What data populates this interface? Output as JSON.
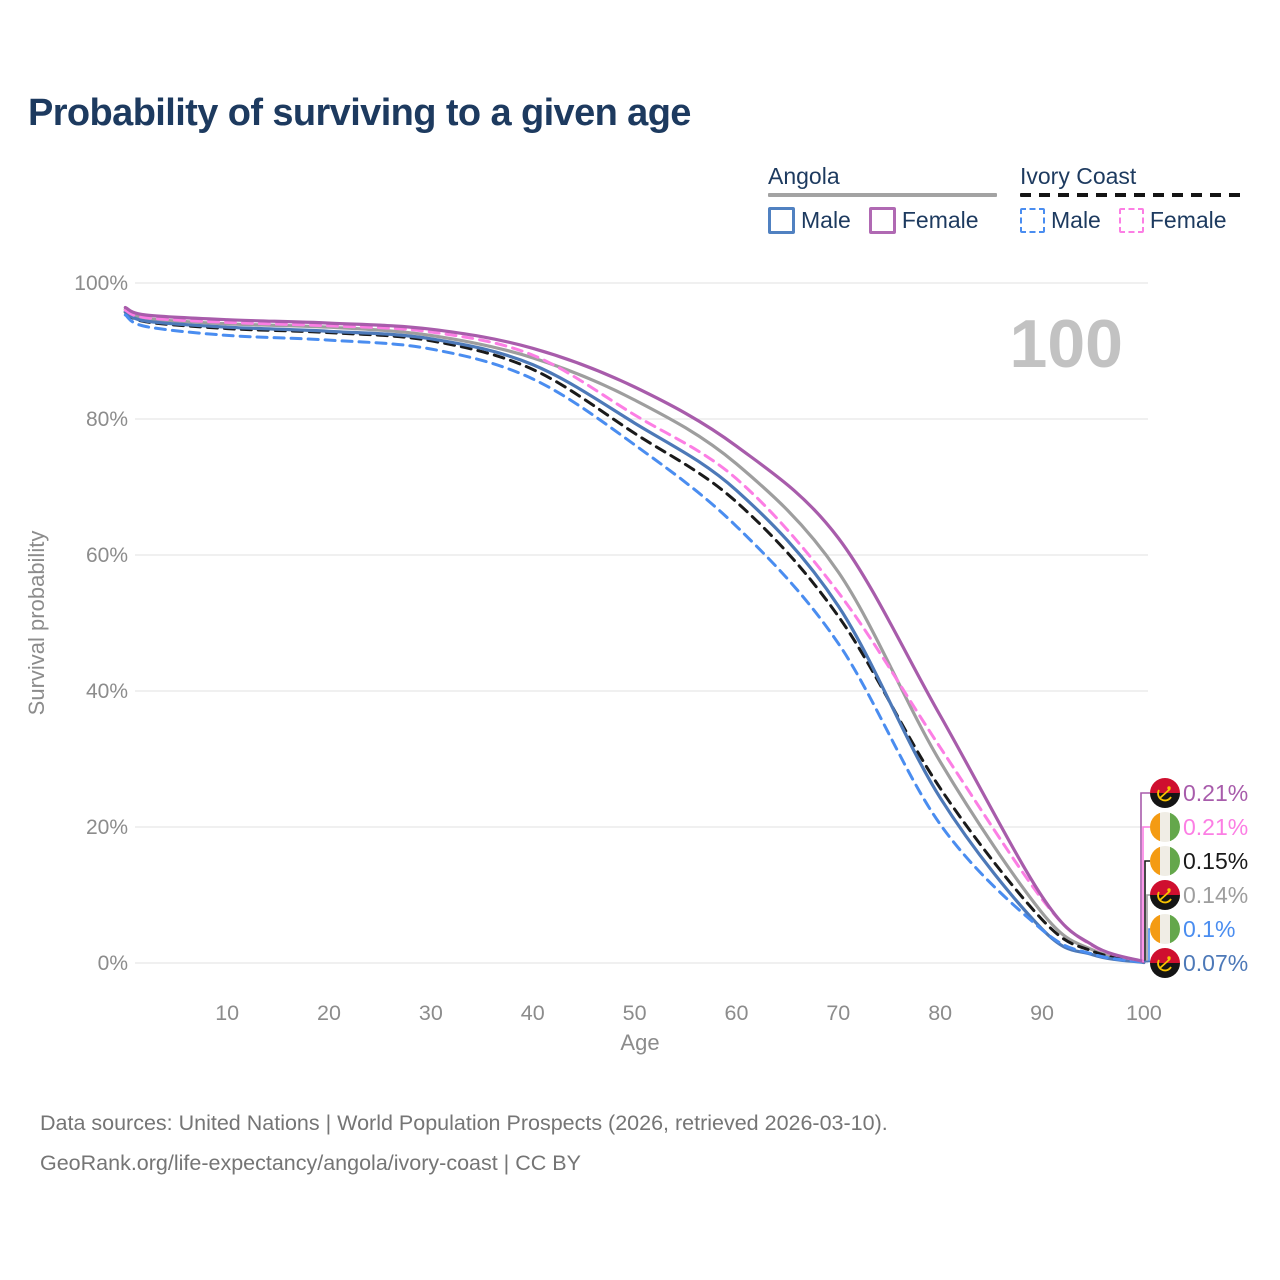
{
  "title": "Probability of surviving to a given age",
  "age_counter": "100",
  "legend": {
    "groups": [
      {
        "label": "Angola",
        "line_style": "solid",
        "underline_color": "#a3a3a3",
        "items": [
          {
            "label": "Male",
            "color": "#5081c1",
            "series_id": "angola-male"
          },
          {
            "label": "Female",
            "color": "#b069b3",
            "series_id": "angola-female"
          }
        ]
      },
      {
        "label": "Ivory Coast",
        "line_style": "dashed",
        "underline_color": "#141414",
        "items": [
          {
            "label": "Male",
            "color": "#4a8df0",
            "series_id": "ivory-coast-male"
          },
          {
            "label": "Female",
            "color": "#fc7ee4",
            "series_id": "ivory-coast-female"
          }
        ]
      }
    ]
  },
  "chart_data": {
    "type": "line",
    "title": "Probability of surviving to a given age",
    "xlabel": "Age",
    "ylabel": "Survival probability",
    "xlim": [
      0,
      100
    ],
    "ylim": [
      0,
      100
    ],
    "grid": "horizontal-only",
    "x_ticks": [
      "10",
      "20",
      "30",
      "40",
      "50",
      "60",
      "70",
      "80",
      "90",
      "100"
    ],
    "x_tick_values": [
      10,
      20,
      30,
      40,
      50,
      60,
      70,
      80,
      90,
      100
    ],
    "y_ticks": [
      "100%",
      "80%",
      "60%",
      "40%",
      "20%",
      "0%"
    ],
    "y_tick_values": [
      100,
      80,
      60,
      40,
      20,
      0
    ],
    "ages": [
      0,
      2,
      10,
      20,
      30,
      40,
      50,
      60,
      70,
      80,
      90,
      95,
      100
    ],
    "series": [
      {
        "id": "angola-female",
        "name": "Angola Female",
        "country": "Angola",
        "sex": "Female",
        "style": "solid",
        "color": "#a85cab",
        "values": [
          96.4,
          95.3,
          94.6,
          94.1,
          93.2,
          90.4,
          84.7,
          76.0,
          62.5,
          36.4,
          9.8,
          2.6,
          0.21
        ]
      },
      {
        "id": "angola-all",
        "name": "Angola (both sexes)",
        "country": "Angola",
        "sex": "Both",
        "style": "solid",
        "color": "#9e9e9e",
        "values": [
          96.1,
          94.8,
          94.0,
          93.5,
          92.3,
          89.0,
          82.8,
          73.4,
          57.5,
          29.6,
          7.4,
          1.9,
          0.14
        ]
      },
      {
        "id": "angola-male",
        "name": "Angola Male",
        "country": "Angola",
        "sex": "Male",
        "style": "solid",
        "color": "#4d79b8",
        "values": [
          95.8,
          94.4,
          93.5,
          92.9,
          91.8,
          88.0,
          79.4,
          69.5,
          52.5,
          24.3,
          5.0,
          1.2,
          0.07
        ]
      },
      {
        "id": "ivory-coast-female",
        "name": "Ivory Coast Female",
        "country": "Ivory Coast",
        "sex": "Female",
        "style": "dashed",
        "color": "#fc7ee4",
        "values": [
          96.0,
          94.9,
          94.2,
          93.7,
          92.8,
          89.4,
          80.6,
          71.2,
          54.5,
          31.7,
          9.4,
          2.5,
          0.21
        ]
      },
      {
        "id": "ivory-coast-all",
        "name": "Ivory Coast (both sexes)",
        "country": "Ivory Coast",
        "sex": "Both",
        "style": "dashed",
        "color": "#1a1a1a",
        "values": [
          95.7,
          94.3,
          93.3,
          92.7,
          91.5,
          87.3,
          77.9,
          67.8,
          51.0,
          25.7,
          6.4,
          1.7,
          0.15
        ]
      },
      {
        "id": "ivory-coast-male",
        "name": "Ivory Coast Male",
        "country": "Ivory Coast",
        "sex": "Male",
        "style": "dashed",
        "color": "#4a8df0",
        "values": [
          95.3,
          93.6,
          92.3,
          91.6,
          90.3,
          85.9,
          76.2,
          64.2,
          47.0,
          20.4,
          4.9,
          1.3,
          0.1
        ]
      }
    ]
  },
  "end_labels": [
    {
      "value": "0.21%",
      "series_id": "angola-female",
      "flag": "angola",
      "color": "#a85cab"
    },
    {
      "value": "0.21%",
      "series_id": "ivory-coast-female",
      "flag": "ivory-coast",
      "color": "#fc7ee4"
    },
    {
      "value": "0.15%",
      "series_id": "ivory-coast-all",
      "flag": "ivory-coast",
      "color": "#1a1a1a"
    },
    {
      "value": "0.14%",
      "series_id": "angola-all",
      "flag": "angola",
      "color": "#9e9e9e"
    },
    {
      "value": "0.1%",
      "series_id": "ivory-coast-male",
      "flag": "ivory-coast",
      "color": "#4a8df0"
    },
    {
      "value": "0.07%",
      "series_id": "angola-male",
      "flag": "angola",
      "color": "#4d79b8"
    }
  ],
  "flag_colors": {
    "angola": {
      "top": "#cf0f2f",
      "bottom": "#151515",
      "emblem": "#f8c300"
    },
    "ivory-coast": {
      "left": "#f49b13",
      "middle": "#f0ede5",
      "right": "#64a74b"
    }
  },
  "footer": {
    "line1": "Data sources: United Nations | World Population Prospects (2026, retrieved 2026-03-10).",
    "line2": "GeoRank.org/life-expectancy/angola/ivory-coast | CC BY"
  }
}
